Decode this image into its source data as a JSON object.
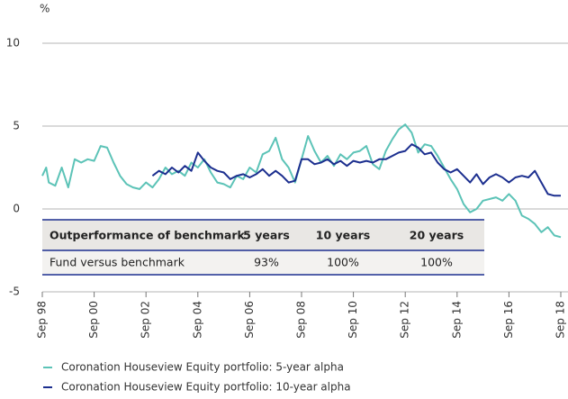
{
  "chart_data": {
    "type": "line",
    "y_label": "%",
    "xlim": [
      1998.75,
      2018.75
    ],
    "ylim": [
      -5,
      10
    ],
    "yticks": [
      -5,
      0,
      5,
      10
    ],
    "grid": true,
    "xticks": [
      {
        "value": 1998.75,
        "label": "Sep 98"
      },
      {
        "value": 2000.75,
        "label": "Sep 00"
      },
      {
        "value": 2002.75,
        "label": "Sep 02"
      },
      {
        "value": 2004.75,
        "label": "Sep 04"
      },
      {
        "value": 2006.75,
        "label": "Sep 06"
      },
      {
        "value": 2008.75,
        "label": "Sep 08"
      },
      {
        "value": 2010.75,
        "label": "Sep 10"
      },
      {
        "value": 2012.75,
        "label": "Sep 12"
      },
      {
        "value": 2014.75,
        "label": "Sep 14"
      },
      {
        "value": 2016.75,
        "label": "Sep 16"
      },
      {
        "value": 2018.75,
        "label": "Sep 18"
      }
    ],
    "series": [
      {
        "name": "Coronation Houseview Equity portfolio: 5-year alpha",
        "color": "#5cc3b7",
        "x": [
          1998.75,
          1998.9,
          1999.0,
          1999.25,
          1999.5,
          1999.75,
          2000.0,
          2000.25,
          2000.5,
          2000.75,
          2001.0,
          2001.25,
          2001.5,
          2001.75,
          2002.0,
          2002.25,
          2002.5,
          2002.75,
          2003.0,
          2003.25,
          2003.5,
          2003.75,
          2004.0,
          2004.25,
          2004.5,
          2004.75,
          2005.0,
          2005.25,
          2005.5,
          2005.75,
          2006.0,
          2006.25,
          2006.5,
          2006.75,
          2007.0,
          2007.25,
          2007.5,
          2007.75,
          2008.0,
          2008.25,
          2008.5,
          2008.75,
          2009.0,
          2009.25,
          2009.5,
          2009.75,
          2010.0,
          2010.25,
          2010.5,
          2010.75,
          2011.0,
          2011.25,
          2011.5,
          2011.75,
          2012.0,
          2012.25,
          2012.5,
          2012.75,
          2013.0,
          2013.25,
          2013.5,
          2013.75,
          2014.0,
          2014.25,
          2014.5,
          2014.75,
          2015.0,
          2015.25,
          2015.5,
          2015.75,
          2016.0,
          2016.25,
          2016.5,
          2016.75,
          2017.0,
          2017.25,
          2017.5,
          2017.75,
          2018.0,
          2018.25,
          2018.5,
          2018.75
        ],
        "values": [
          2.0,
          2.5,
          1.6,
          1.4,
          2.5,
          1.3,
          3.0,
          2.8,
          3.0,
          2.9,
          3.8,
          3.7,
          2.8,
          2.0,
          1.5,
          1.3,
          1.2,
          1.6,
          1.3,
          1.8,
          2.5,
          2.1,
          2.3,
          2.0,
          2.8,
          2.5,
          3.0,
          2.2,
          1.6,
          1.5,
          1.3,
          2.0,
          1.8,
          2.5,
          2.2,
          3.3,
          3.5,
          4.3,
          3.0,
          2.5,
          1.6,
          3.0,
          4.4,
          3.5,
          2.8,
          3.2,
          2.6,
          3.3,
          3.0,
          3.4,
          3.5,
          3.8,
          2.7,
          2.4,
          3.5,
          4.2,
          4.8,
          5.1,
          4.6,
          3.4,
          3.9,
          3.8,
          3.2,
          2.5,
          1.8,
          1.2,
          0.3,
          -0.2,
          0.0,
          0.5,
          0.6,
          0.7,
          0.5,
          0.9,
          0.5,
          -0.4,
          -0.6,
          -0.9,
          -1.4,
          -1.1,
          -1.6,
          -1.7
        ]
      },
      {
        "name": "Coronation Houseview Equity portfolio: 10-year alpha",
        "color": "#1c2f8f",
        "x": [
          2003.0,
          2003.25,
          2003.5,
          2003.75,
          2004.0,
          2004.25,
          2004.5,
          2004.75,
          2005.0,
          2005.25,
          2005.5,
          2005.75,
          2006.0,
          2006.25,
          2006.5,
          2006.75,
          2007.0,
          2007.25,
          2007.5,
          2007.75,
          2008.0,
          2008.25,
          2008.5,
          2008.75,
          2009.0,
          2009.25,
          2009.5,
          2009.75,
          2010.0,
          2010.25,
          2010.5,
          2010.75,
          2011.0,
          2011.25,
          2011.5,
          2011.75,
          2012.0,
          2012.25,
          2012.5,
          2012.75,
          2013.0,
          2013.25,
          2013.5,
          2013.75,
          2014.0,
          2014.25,
          2014.5,
          2014.75,
          2015.0,
          2015.25,
          2015.5,
          2015.75,
          2016.0,
          2016.25,
          2016.5,
          2016.75,
          2017.0,
          2017.25,
          2017.5,
          2017.75,
          2018.0,
          2018.25,
          2018.5,
          2018.75
        ],
        "values": [
          2.0,
          2.3,
          2.1,
          2.5,
          2.2,
          2.6,
          2.3,
          3.4,
          2.9,
          2.5,
          2.3,
          2.2,
          1.8,
          2.0,
          2.1,
          1.9,
          2.1,
          2.4,
          2.0,
          2.3,
          2.0,
          1.6,
          1.7,
          3.0,
          3.0,
          2.7,
          2.8,
          3.0,
          2.7,
          2.9,
          2.6,
          2.9,
          2.8,
          2.9,
          2.8,
          3.0,
          3.0,
          3.2,
          3.4,
          3.5,
          3.9,
          3.7,
          3.3,
          3.4,
          2.8,
          2.4,
          2.2,
          2.4,
          2.0,
          1.6,
          2.1,
          1.5,
          1.9,
          2.1,
          1.9,
          1.6,
          1.9,
          2.0,
          1.9,
          2.3,
          1.6,
          0.9,
          0.8,
          0.8
        ]
      }
    ]
  },
  "table": {
    "header": [
      "Outperformance of benchmark",
      "5 years",
      "10 years",
      "20 years"
    ],
    "rows": [
      [
        "Fund versus benchmark",
        "93%",
        "100%",
        "100%"
      ]
    ]
  }
}
